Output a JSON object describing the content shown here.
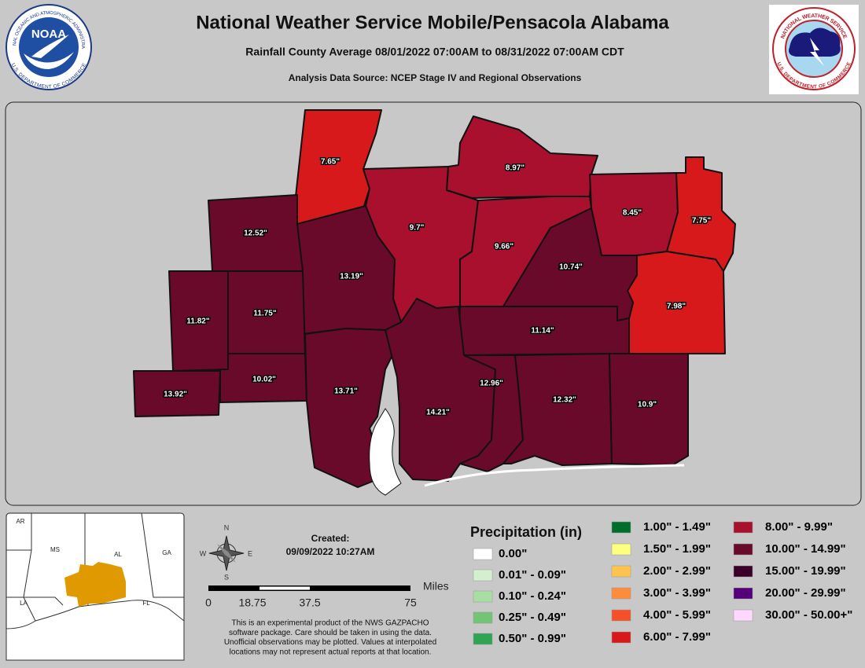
{
  "header": {
    "title": "National Weather Service Mobile/Pensacola Alabama",
    "subtitle": "Rainfall County Average 08/01/2022 07:00AM to 08/31/2022 07:00AM CDT",
    "source": "Analysis Data Source: NCEP Stage IV and Regional Observations"
  },
  "logos": {
    "noaa": "NOAA",
    "noaa_ring_top": "NATIONAL OCEANIC AND ATMOSPHERIC ADMINISTRATION",
    "noaa_ring_bottom": "U.S. DEPARTMENT OF COMMERCE",
    "nws_ring_top": "NATIONAL WEATHER SERVICE",
    "nws_ring_bottom": "U.S. DEPARTMENT OF COMMERCE"
  },
  "counties": [
    {
      "label": "7.65\""
    },
    {
      "label": "8.97\""
    },
    {
      "label": "9.7\""
    },
    {
      "label": "9.66\""
    },
    {
      "label": "8.45\""
    },
    {
      "label": "7.75\""
    },
    {
      "label": "7.98\""
    },
    {
      "label": "10.74\""
    },
    {
      "label": "11.14\""
    },
    {
      "label": "13.19\""
    },
    {
      "label": "12.52\""
    },
    {
      "label": "11.82\""
    },
    {
      "label": "11.75\""
    },
    {
      "label": "10.02\""
    },
    {
      "label": "13.92\""
    },
    {
      "label": "13.71\""
    },
    {
      "label": "14.21\""
    },
    {
      "label": "12.96\""
    },
    {
      "label": "12.32\""
    },
    {
      "label": "10.9\""
    }
  ],
  "inset": {
    "states": [
      "AR",
      "MS",
      "AL",
      "GA",
      "LA",
      "FL"
    ]
  },
  "compass": {
    "n": "N",
    "s": "S",
    "e": "E",
    "w": "W"
  },
  "created": {
    "label": "Created:",
    "date": "09/09/2022 10:27AM"
  },
  "scale": {
    "unit": "Miles",
    "labels": [
      "0",
      "18.75",
      "37.5",
      "75"
    ]
  },
  "disclaimer": [
    "This is an experimental product of the NWS GAZPACHO",
    "software package. Care should be taken in using the data.",
    "Unofficial observations may be plotted. Values at interpolated",
    "locations may not represent actual reports at that location."
  ],
  "legend": {
    "title": "Precipitation (in)",
    "items": [
      {
        "label": "0.00\"",
        "color": "#ffffff"
      },
      {
        "label": "0.01\" - 0.09\"",
        "color": "#d4efd0"
      },
      {
        "label": "0.10\" - 0.24\"",
        "color": "#a8dea2"
      },
      {
        "label": "0.25\" - 0.49\"",
        "color": "#74c476"
      },
      {
        "label": "0.50\" - 0.99\"",
        "color": "#31a354"
      },
      {
        "label": "1.00\" - 1.49\"",
        "color": "#006d2c"
      },
      {
        "label": "1.50\" - 1.99\"",
        "color": "#ffff80"
      },
      {
        "label": "2.00\" - 2.99\"",
        "color": "#fec44f"
      },
      {
        "label": "3.00\" - 3.99\"",
        "color": "#fd8d3c"
      },
      {
        "label": "4.00\" - 5.99\"",
        "color": "#f5502a"
      },
      {
        "label": "6.00\" - 7.99\"",
        "color": "#d7191c"
      },
      {
        "label": "8.00\" - 9.99\"",
        "color": "#a8102e"
      },
      {
        "label": "10.00\" - 14.99\"",
        "color": "#6a0a2a"
      },
      {
        "label": "15.00\" - 19.99\"",
        "color": "#3a0028"
      },
      {
        "label": "20.00\" - 29.99\"",
        "color": "#54007a"
      },
      {
        "label": "30.00\" - 50.00+\"",
        "color": "#ffd7ff"
      }
    ]
  }
}
